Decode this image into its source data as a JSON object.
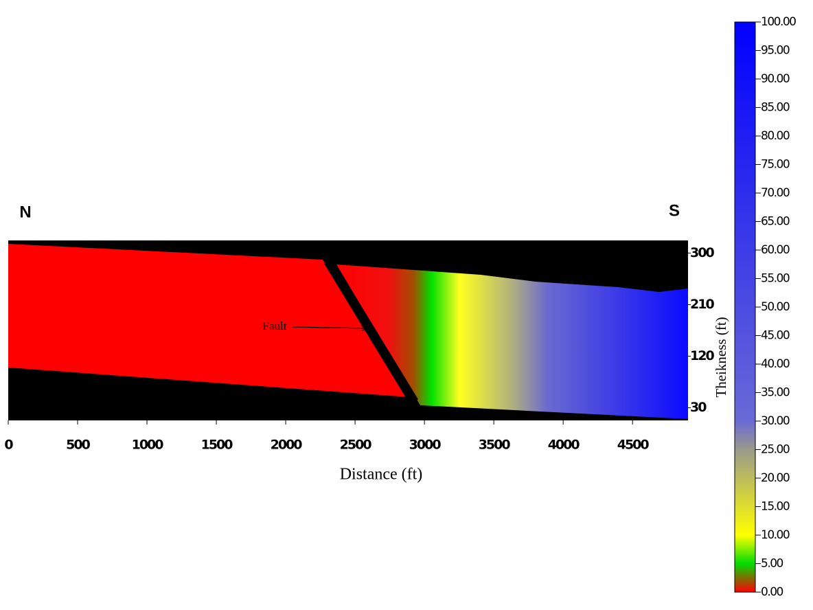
{
  "chart_data": {
    "type": "cross-section",
    "xlabel": "Distance (ft)",
    "xlim": [
      0,
      4900
    ],
    "xticks": [
      0,
      500,
      1000,
      1500,
      2000,
      2500,
      3000,
      3500,
      4000,
      4500
    ],
    "ylim": [
      8,
      322
    ],
    "yticks": [
      300,
      210,
      120,
      30
    ],
    "left_label": "N",
    "right_label": "S",
    "annotation": "Fault",
    "colorbar_label": "Theikness (ft)",
    "clim": [
      0,
      100
    ],
    "cticks": [
      {
        "value": 100,
        "label": "100.00"
      },
      {
        "value": 95,
        "label": "95.00"
      },
      {
        "value": 90,
        "label": "90.00"
      },
      {
        "value": 85,
        "label": "85.00"
      },
      {
        "value": 80,
        "label": "80.00"
      },
      {
        "value": 75,
        "label": "75.00"
      },
      {
        "value": 70,
        "label": "70.00"
      },
      {
        "value": 65,
        "label": "65.00"
      },
      {
        "value": 60,
        "label": "60.00"
      },
      {
        "value": 55,
        "label": "55.00"
      },
      {
        "value": 50,
        "label": "50.00"
      },
      {
        "value": 45,
        "label": "45.00"
      },
      {
        "value": 40,
        "label": "40.00"
      },
      {
        "value": 35,
        "label": "35.00"
      },
      {
        "value": 30,
        "label": "30.00"
      },
      {
        "value": 25,
        "label": "25.00"
      },
      {
        "value": 20,
        "label": "20.00"
      },
      {
        "value": 15,
        "label": "15.00"
      },
      {
        "value": 10,
        "label": "10.00"
      },
      {
        "value": 5,
        "label": "5.00"
      },
      {
        "value": 0,
        "label": "0.00"
      }
    ],
    "colormap": [
      {
        "value": 0,
        "color": "#ff0000"
      },
      {
        "value": 5,
        "color": "#00dd00"
      },
      {
        "value": 10,
        "color": "#ffff00"
      },
      {
        "value": 25,
        "color": "#9a9a8a"
      },
      {
        "value": 30,
        "color": "#6a6ad6"
      },
      {
        "value": 100,
        "color": "#0000ff"
      }
    ]
  }
}
